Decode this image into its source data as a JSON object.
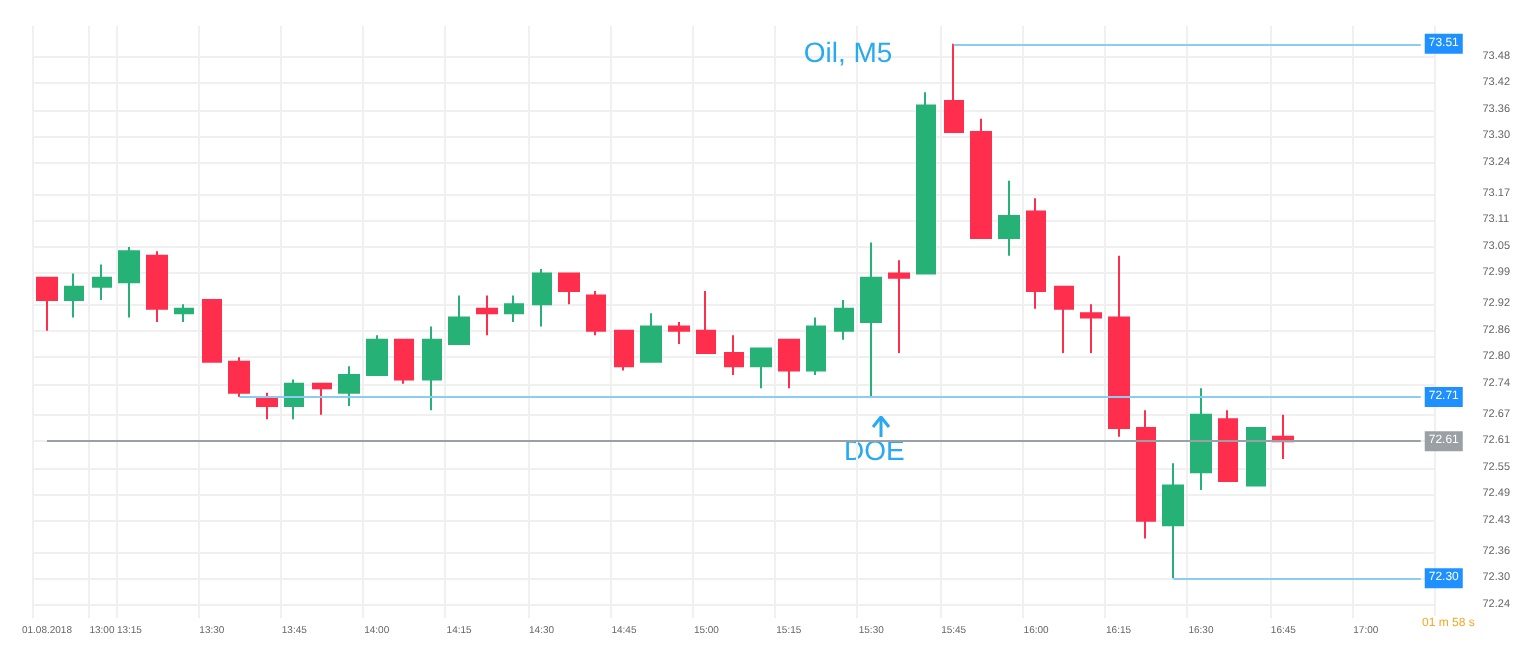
{
  "chart_data": {
    "type": "candlestick",
    "title": "Oil, M5",
    "categories": [
      "01.08.2018",
      null,
      "13:00",
      "13:15",
      null,
      null,
      "13:30",
      null,
      null,
      "13:45",
      null,
      null,
      "14:00",
      null,
      null,
      "14:15",
      null,
      null,
      "14:30",
      null,
      null,
      "14:45",
      null,
      null,
      "15:00",
      null,
      null,
      "15:15",
      null,
      null,
      "15:30",
      null,
      null,
      "15:45",
      null,
      null,
      "16:00",
      null,
      null,
      "16:15",
      null,
      null,
      "16:30",
      null,
      null,
      "16:45",
      null,
      null,
      "17:00",
      null,
      null
    ],
    "ohlc": [
      [
        72.98,
        72.98,
        72.86,
        72.93
      ],
      [
        72.93,
        72.99,
        72.89,
        72.96
      ],
      [
        72.96,
        73.01,
        72.93,
        72.98
      ],
      [
        72.97,
        73.05,
        72.89,
        73.04
      ],
      [
        73.03,
        73.04,
        72.88,
        72.91
      ],
      [
        72.9,
        72.92,
        72.88,
        72.91
      ],
      [
        72.93,
        72.93,
        72.79,
        72.79
      ],
      [
        72.79,
        72.8,
        72.71,
        72.72
      ],
      [
        72.71,
        72.72,
        72.66,
        72.69
      ],
      [
        72.69,
        72.75,
        72.66,
        72.74
      ],
      [
        72.74,
        72.74,
        72.67,
        72.73
      ],
      [
        72.72,
        72.78,
        72.69,
        72.76
      ],
      [
        72.76,
        72.85,
        72.76,
        72.84
      ],
      [
        72.84,
        72.84,
        72.74,
        72.75
      ],
      [
        72.75,
        72.87,
        72.68,
        72.84
      ],
      [
        72.83,
        72.94,
        72.83,
        72.89
      ],
      [
        72.91,
        72.94,
        72.85,
        72.9
      ],
      [
        72.9,
        72.94,
        72.88,
        72.92
      ],
      [
        72.92,
        73.0,
        72.87,
        72.99
      ],
      [
        72.99,
        72.99,
        72.92,
        72.95
      ],
      [
        72.94,
        72.95,
        72.85,
        72.86
      ],
      [
        72.86,
        72.86,
        72.77,
        72.78
      ],
      [
        72.79,
        72.9,
        72.79,
        72.87
      ],
      [
        72.87,
        72.88,
        72.83,
        72.86
      ],
      [
        72.86,
        72.95,
        72.81,
        72.81
      ],
      [
        72.81,
        72.85,
        72.76,
        72.78
      ],
      [
        72.78,
        72.82,
        72.73,
        72.82
      ],
      [
        72.84,
        72.84,
        72.73,
        72.77
      ],
      [
        72.77,
        72.89,
        72.76,
        72.87
      ],
      [
        72.86,
        72.93,
        72.84,
        72.91
      ],
      [
        72.88,
        73.06,
        72.71,
        72.98
      ],
      [
        72.99,
        73.02,
        72.81,
        72.98
      ],
      [
        72.99,
        73.4,
        72.99,
        73.37
      ],
      [
        73.38,
        73.51,
        73.31,
        73.31
      ],
      [
        73.31,
        73.34,
        73.07,
        73.07
      ],
      [
        73.07,
        73.2,
        73.03,
        73.12
      ],
      [
        73.13,
        73.16,
        72.91,
        72.95
      ],
      [
        72.96,
        72.96,
        72.81,
        72.91
      ],
      [
        72.9,
        72.92,
        72.81,
        72.89
      ],
      [
        72.89,
        73.03,
        72.62,
        72.64
      ],
      [
        72.64,
        72.68,
        72.39,
        72.43
      ],
      [
        72.42,
        72.56,
        72.3,
        72.51
      ],
      [
        72.54,
        72.73,
        72.5,
        72.67
      ],
      [
        72.66,
        72.68,
        72.52,
        72.52
      ],
      [
        72.51,
        72.64,
        72.51,
        72.64
      ],
      [
        72.62,
        72.67,
        72.57,
        72.61
      ],
      null,
      null,
      null,
      null,
      null
    ],
    "ylim": [
      72.21,
      73.55
    ],
    "yticks": [
      72.24,
      {
        "value": 72.3,
        "label": "72.30"
      },
      72.36,
      72.43,
      72.49,
      72.55,
      72.61,
      72.67,
      72.74,
      {
        "value": 72.8,
        "label": "72.80"
      },
      72.86,
      72.92,
      72.99,
      73.05,
      73.11,
      73.17,
      73.24,
      {
        "value": 73.3,
        "label": "73.30"
      },
      73.36,
      73.42,
      73.48
    ],
    "ref_lines": [
      {
        "axis": "y",
        "value": 73.51,
        "label": "73.51",
        "color": "#8ccbf2"
      },
      {
        "axis": "y",
        "value": 72.71,
        "label": "72.71",
        "color": "#8ccbf2"
      },
      {
        "axis": "y",
        "value": 72.3,
        "label": "72.30",
        "color": "#8ccbf2"
      },
      {
        "axis": "y",
        "value": 72.61,
        "label": "72.61",
        "color": "#9aa0a6"
      }
    ],
    "annotations": [
      "DOE",
      "01 m 58 s"
    ],
    "grid": true
  }
}
